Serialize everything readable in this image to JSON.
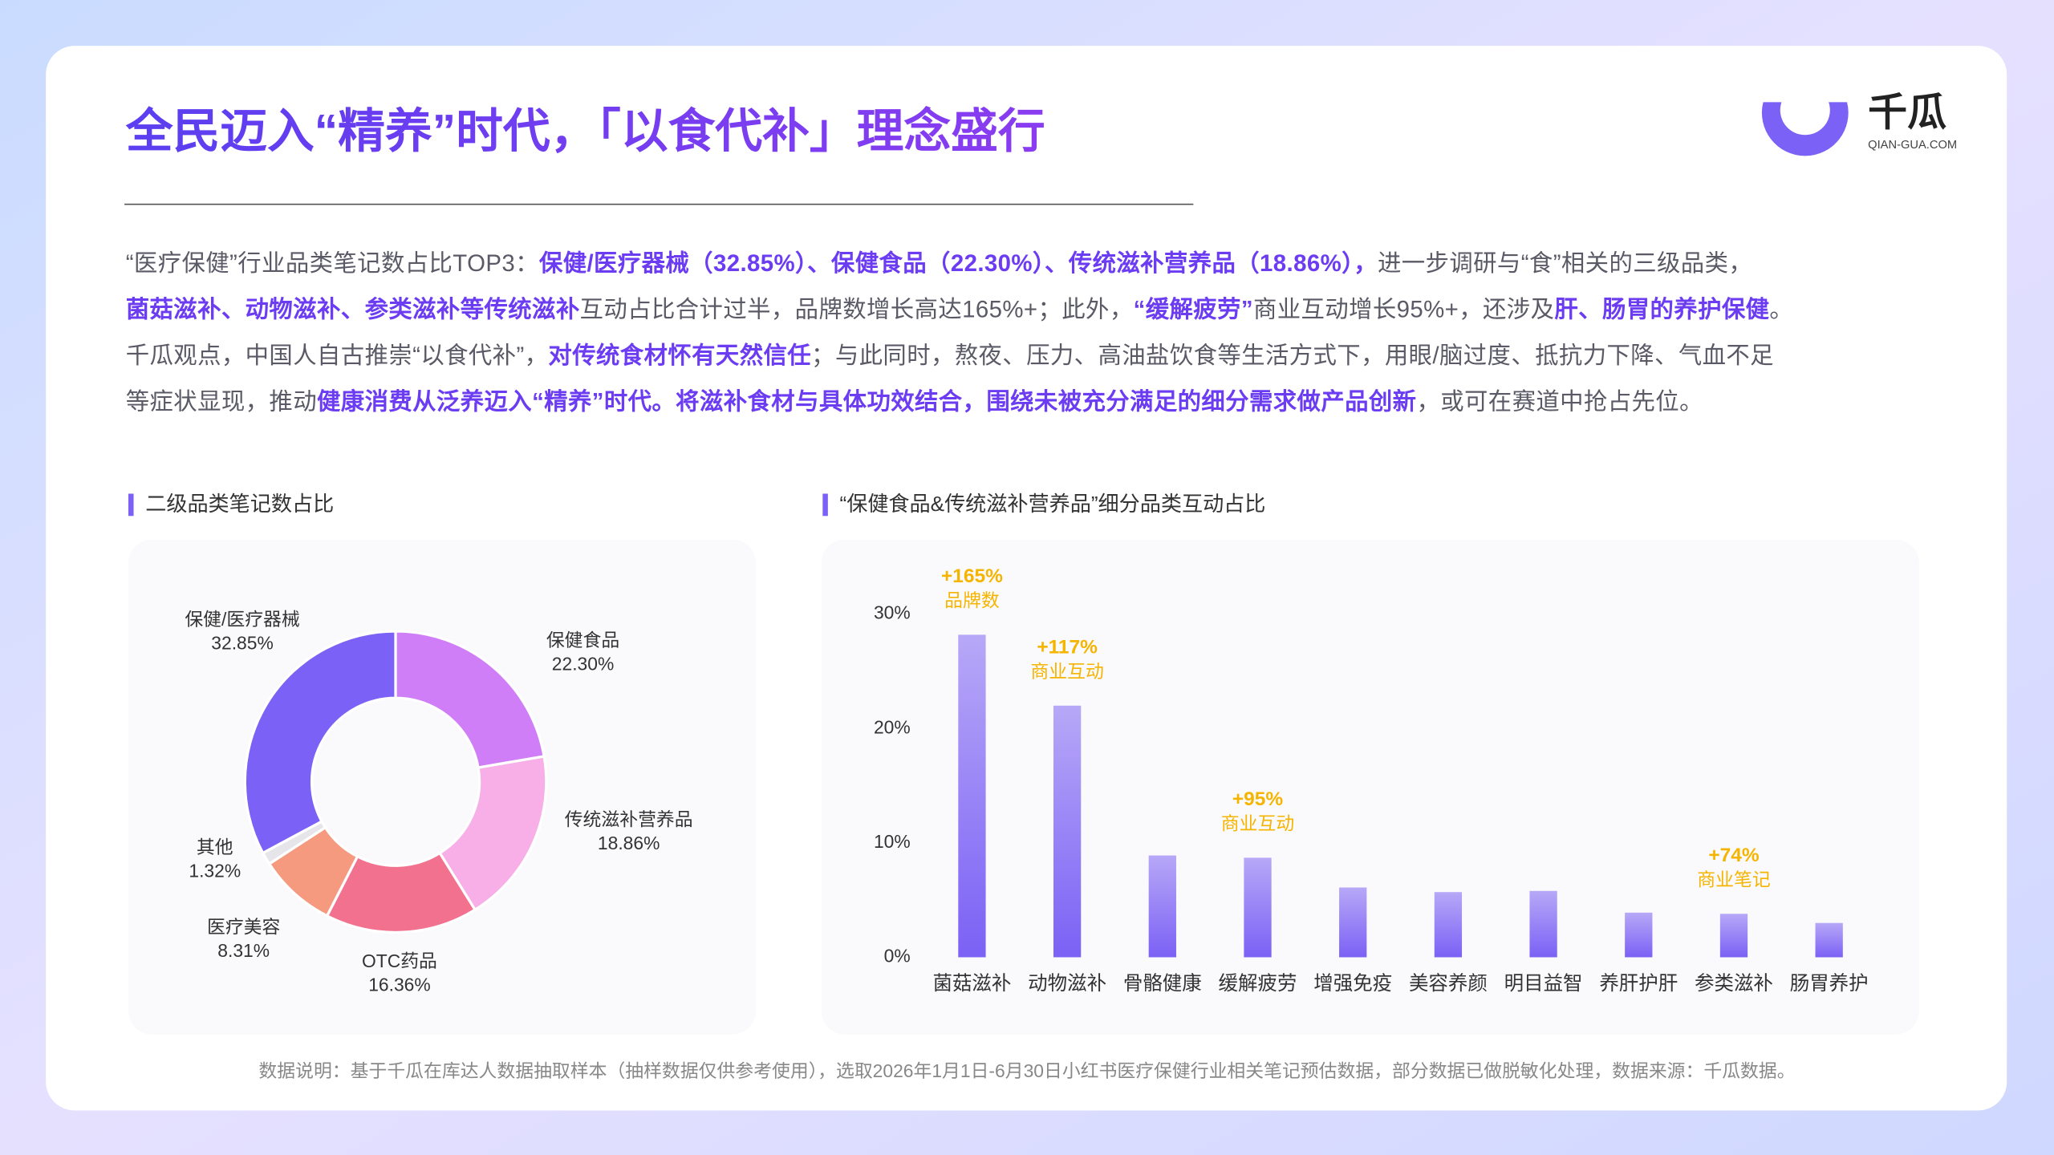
{
  "header": {
    "title": "全民迈入“精养”时代，「以食代补」理念盛行",
    "logo": "千瓜",
    "logo_sub": "QIAN-GUA.COM"
  },
  "paragraph": [
    [
      {
        "text": "“医疗保健”行业品类笔记数占比TOP3：",
        "strong": false
      },
      {
        "text": "保健/医疗器械（32.85%）、保健食品（22.30%）、传统滋补营养品（18.86%），",
        "strong": true
      },
      {
        "text": "进一步调研与“食”相关的三级品类，",
        "strong": false
      }
    ],
    [
      {
        "text": "菌菇滋补、动物滋补、参类滋补等传统滋补",
        "strong": true
      },
      {
        "text": "互动占比合计过半，品牌数增长高达165%+；此外，",
        "strong": false
      },
      {
        "text": "“缓解疲劳”",
        "strong": true
      },
      {
        "text": "商业互动增长95%+，还涉及",
        "strong": false
      },
      {
        "text": "肝、肠胃的养护保健",
        "strong": true
      },
      {
        "text": "。",
        "strong": false
      }
    ],
    [
      {
        "text": "千瓜观点，中国人自古推崇“以食代补”，",
        "strong": false
      },
      {
        "text": "对传统食材怀有天然信任",
        "strong": true
      },
      {
        "text": "；与此同时，熬夜、压力、高油盐饮食等生活方式下，用眼/脑过度、抵抗力下降、气血不足",
        "strong": false
      }
    ],
    [
      {
        "text": "等症状显现，推动",
        "strong": false
      },
      {
        "text": "健康消费从泛养迈入“精养”时代。将滋补食材与具体功效结合，围绕未被充分满足的细分需求做产品创新",
        "strong": true
      },
      {
        "text": "，或可在赛道中抢占先位。",
        "strong": false
      }
    ]
  ],
  "chart_data": [
    {
      "type": "donut",
      "title": "二级品类笔记数占比",
      "categories": [
        "保健/医疗器械",
        "保健食品",
        "传统滋补营养品",
        "OTC药品",
        "医疗美容",
        "其他"
      ],
      "values": [
        32.85,
        22.3,
        18.86,
        16.36,
        8.31,
        1.32
      ],
      "value_labels": [
        "32.85%",
        "22.30%",
        "18.86%",
        "16.36%",
        "8.31%",
        "1.32%"
      ],
      "colors": [
        "#7b61f5",
        "#d07ef7",
        "#f8aee6",
        "#f2718f",
        "#f59a7e",
        "#e6e6ea"
      ]
    },
    {
      "type": "bar",
      "title": "“保健食品&传统滋补营养品”细分品类互动占比",
      "categories": [
        "菌菇滋补",
        "动物滋补",
        "骨骼健康",
        "缓解疲劳",
        "增强免疫",
        "美容养颜",
        "明目益智",
        "养肝护肝",
        "参类滋补",
        "肠胃养护"
      ],
      "values": [
        28.2,
        22.0,
        8.9,
        8.7,
        6.1,
        5.7,
        5.8,
        3.9,
        3.8,
        3.0
      ],
      "color": "#7b61f5",
      "ylim": [
        0,
        30
      ],
      "yticks": [
        {
          "value": 0,
          "label": "0%"
        },
        {
          "value": 10,
          "label": "10%"
        },
        {
          "value": 20,
          "label": "20%"
        },
        {
          "value": 30,
          "label": "30%"
        }
      ],
      "grid": false,
      "annotations": [
        {
          "index": 0,
          "text": "+165%",
          "subtext": "品牌数"
        },
        {
          "index": 1,
          "text": "+117%",
          "subtext": "商业互动"
        },
        {
          "index": 3,
          "text": "+95%",
          "subtext": "商业互动"
        },
        {
          "index": 8,
          "text": "+74%",
          "subtext": "商业笔记"
        }
      ],
      "annotation_color": "#f5b400"
    }
  ],
  "footnote": "数据说明：基于千瓜在库达人数据抽取样本（抽样数据仅供参考使用），选取2026年1月1日-6月30日小红书医疗保健行业相关笔记预估数据，部分数据已做脱敏化处理，数据来源：千瓜数据。"
}
